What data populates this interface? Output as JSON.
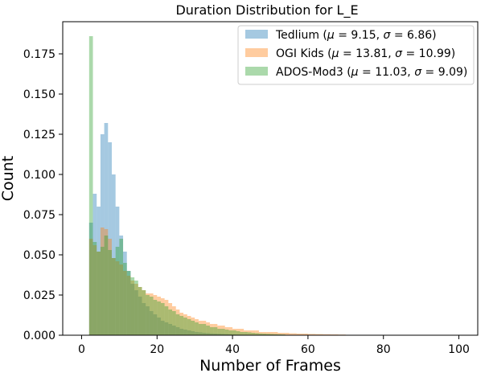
{
  "chart_data": {
    "type": "histogram",
    "title": "Duration Distribution for L_E",
    "xlabel": "Number of Frames",
    "ylabel": "Count",
    "xlim": [
      -5,
      105
    ],
    "ylim": [
      0,
      0.195
    ],
    "xticks": [
      0,
      20,
      40,
      60,
      80,
      100
    ],
    "yticks": [
      0.0,
      0.025,
      0.05,
      0.075,
      0.1,
      0.125,
      0.15,
      0.175
    ],
    "ytick_labels": [
      "0.000",
      "0.025",
      "0.050",
      "0.075",
      "0.100",
      "0.125",
      "0.150",
      "0.175"
    ],
    "grid": false,
    "legend_position": "upper right",
    "bin_width": 1,
    "series": [
      {
        "name": "Tedlium (μ = 9.15, σ = 6.86)",
        "label_prefix": "Tedlium",
        "mu": "9.15",
        "sigma": "6.86",
        "color": "#1f77b4",
        "bin_start": 2,
        "values": [
          0.07,
          0.088,
          0.08,
          0.125,
          0.132,
          0.12,
          0.1,
          0.08,
          0.062,
          0.052,
          0.04,
          0.032,
          0.028,
          0.024,
          0.02,
          0.018,
          0.015,
          0.013,
          0.011,
          0.009,
          0.008,
          0.007,
          0.006,
          0.005,
          0.004,
          0.0035,
          0.003,
          0.0025,
          0.002,
          0.0018,
          0.0015,
          0.0013,
          0.0011,
          0.001,
          0.0009,
          0.0008,
          0.0007,
          0.0006,
          0.0005,
          0.0004,
          0.0003,
          0.0003,
          0.0002,
          0.0002,
          0.0002,
          0.0001
        ]
      },
      {
        "name": "OGI Kids (μ = 13.81, σ = 10.99)",
        "label_prefix": "OGI Kids",
        "mu": "13.81",
        "sigma": "10.99",
        "color": "#ff7f0e",
        "bin_start": 2,
        "values": [
          0.06,
          0.056,
          0.052,
          0.067,
          0.066,
          0.06,
          0.048,
          0.046,
          0.044,
          0.04,
          0.037,
          0.034,
          0.032,
          0.03,
          0.028,
          0.026,
          0.026,
          0.025,
          0.024,
          0.023,
          0.022,
          0.02,
          0.018,
          0.016,
          0.014,
          0.013,
          0.012,
          0.011,
          0.01,
          0.009,
          0.009,
          0.008,
          0.007,
          0.007,
          0.006,
          0.006,
          0.005,
          0.005,
          0.004,
          0.004,
          0.004,
          0.003,
          0.003,
          0.003,
          0.003,
          0.002,
          0.002,
          0.002,
          0.002,
          0.002,
          0.0015,
          0.0015,
          0.0015,
          0.0012,
          0.0012,
          0.001,
          0.001,
          0.001,
          0.0008,
          0.0008,
          0.0007,
          0.0007,
          0.0006,
          0.0006,
          0.0005,
          0.0005,
          0.0004,
          0.0004
        ]
      },
      {
        "name": "ADOS-Mod3 (μ = 11.03, σ = 9.09)",
        "label_prefix": "ADOS-Mod3",
        "mu": "11.03",
        "sigma": "9.09",
        "color": "#2ca02c",
        "bin_start": 2,
        "values": [
          0.186,
          0.058,
          0.052,
          0.055,
          0.062,
          0.053,
          0.048,
          0.055,
          0.06,
          0.045,
          0.04,
          0.036,
          0.034,
          0.03,
          0.028,
          0.025,
          0.024,
          0.022,
          0.021,
          0.02,
          0.018,
          0.016,
          0.015,
          0.013,
          0.012,
          0.011,
          0.01,
          0.009,
          0.008,
          0.007,
          0.007,
          0.006,
          0.005,
          0.005,
          0.004,
          0.004,
          0.0035,
          0.003,
          0.003,
          0.0025,
          0.002,
          0.002,
          0.0018,
          0.0015,
          0.0013,
          0.0011,
          0.001,
          0.0009,
          0.0008,
          0.0007,
          0.0006,
          0.0005
        ]
      }
    ]
  }
}
